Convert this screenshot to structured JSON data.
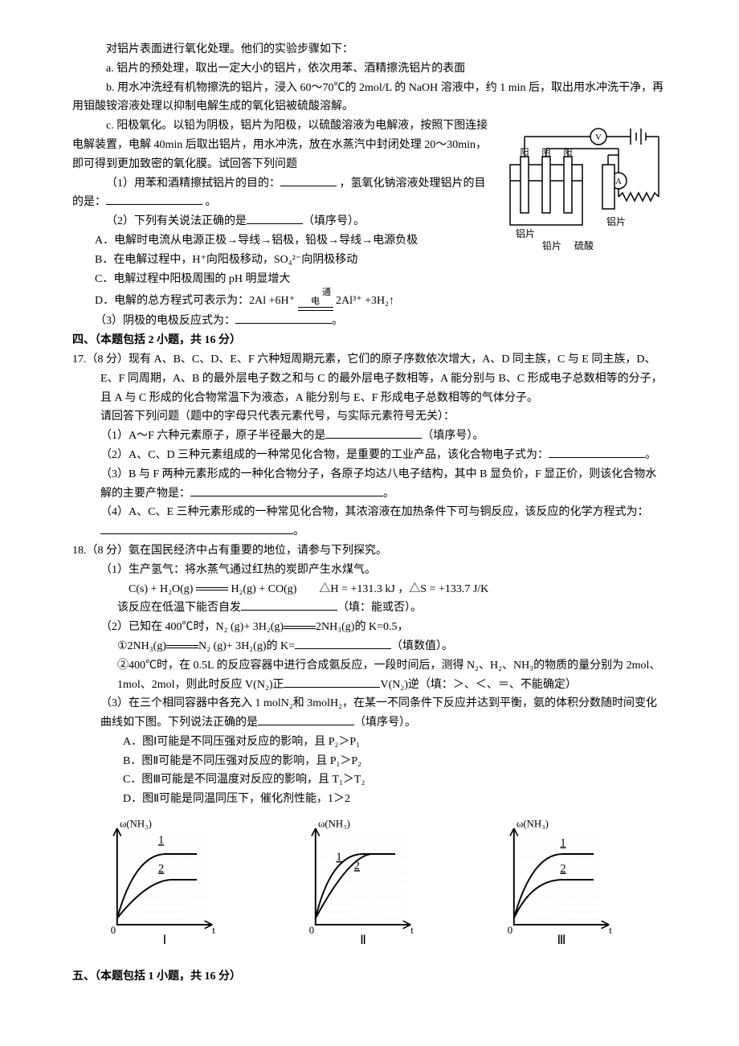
{
  "intro": {
    "l1": "对铝片表面进行氧化处理。他们的实验步骤如下：",
    "la": "a. 铝片的预处理，取出一定大小的铝片，依次用苯、酒精擦洗铝片的表面",
    "lb": "b. 用水冲洗经有机物擦洗的铝片，浸入 60～70℃的 2mol/L 的 NaOH 溶液中，约 1 min 后，取出用水冲洗干净，再用钼酸铵溶液处理以抑制电解生成的氧化铝被硫酸溶解。",
    "lc1": "c. 阳极氧化。以铅为阴极，铝片为阳极，以硫酸溶液为电解液，按照下图连接电解装置，电解 40min 后取出铝片，用水冲洗，放在水蒸汽中封闭处理 20～30min，即可得到更加致密的氧化膜。试回答下列问题",
    "q1a": "（1）用苯和酒精擦拭铝片的目的：",
    "q1b": "，氢氧化钠溶液处理铝片的目的是：",
    "q1c": "。",
    "q2": "（2）下列有关说法正确的是",
    "q2tail": "（填序号）。",
    "optA": "A．电解时电流从电源正极→导线→铝极，铅极→导线→电源负极",
    "optB": "B．在电解过程中，H⁺向阳极移动，SO₄²⁻向阴极移动",
    "optC": "C．电解过程中阳极周围的 pH 明显增大",
    "optD1": "D．电解的总方程式可表示为：2Al +6H⁺",
    "optD_top": "通电",
    "optD2": " 2Al³⁺ +3H₂↑",
    "q3": "（3）阴极的电极反应式为：",
    "q3tail": "。"
  },
  "diagram1": {
    "labels": {
      "alplate_l": "铝片",
      "lead": "铅片",
      "acid": "硫酸",
      "alplate_r": "铝片",
      "yang": "阳",
      "yin": "阴"
    }
  },
  "sec4": {
    "title": "四、（本题包括 2 小题，共 16 分）",
    "q17": {
      "stem": "17.（8 分）现有 A、B、C、D、E、F 六种短周期元素，它们的原子序数依次增大，A、D 同主族，C 与 E 同主族，D、E、F 同周期，A、B 的最外层电子数之和与 C 的最外层电子数相等，A 能分别与 B、C 形成电子总数相等的分子，且 A 与 C 形成的化合物常温下为液态，A 能分别与 E、F 形成电子总数相等的气体分子。",
      "note": "请回答下列问题（题中的字母只代表元素代号，与实际元素符号无关）：",
      "p1a": "（1）A～F 六种元素原子，原子半径最大的是",
      "p1b": "（填序号）。",
      "p2a": "（2）A、C、D 三种元素组成的一种常见化合物，是重要的工业产品，该化合物电子式为：",
      "p2b": "。",
      "p3a": "（3）B 与 F 两种元素形成的一种化合物分子，各原子均达八电子结构，其中 B 显负价，F 显正价，则该化合物水解的主要产物是：",
      "p3b": "。",
      "p4a": "（4）A、C、E 三种元素形成的一种常见化合物，其浓溶液在加热条件下可与铜反应，该反应的化学方程式为：",
      "p4b": "。"
    },
    "q18": {
      "stem": "18.（8 分）氨在国民经济中占有重要的地位，请参与下列探究。",
      "p1a": "（1）生产氢气：将水蒸气通过红热的炭即产生水煤气。",
      "eq1": "C(s) + H₂O(g)",
      "eq1b": "H₂(g) + CO(g)　　△H = +131.3 kJ ，△S = +133.7 J/K",
      "p1b": "该反应在低温下能否自发",
      "p1c": "（填：能或否）。",
      "p2a": "（2）已知在 400℃时，N₂ (g)+ 3H₂(g)",
      "p2a2": "2NH₃(g)的 K=0.5，",
      "p2b1": "①2NH₃(g)",
      "p2b2": "N₂ (g)+ 3H₂(g)的 K=",
      "p2b3": "（填数值）。",
      "p2c1": "②400℃时，在 0.5L 的反应容器中进行合成氨反应，一段时间后，测得 N₂、H₂、NH₃的物质的量分别为 2mol、1mol、2mol，则此时反应 V(N₂)正",
      "p2c2": "V(N₂)逆（填：＞、＜、＝、不能确定）",
      "p3a": "（3）在三个相同容器中各充入 1 molN₂和 3molH₂，在某一不同条件下反应并达到平衡，氨的体积分数随时间变化曲线如下图。下列说法正确的是",
      "p3b": "（填序号）。",
      "oA": "A．图Ⅰ可能是不同压强对反应的影响，且 P₂＞P₁",
      "oB": "B．图Ⅱ可能是不同压强对反应的影响，且 P₁＞P₂",
      "oC": "C．图Ⅲ可能是不同温度对反应的影响，且 T₁＞T₂",
      "oD": "D．图Ⅱ可能是同温同压下，催化剂性能，1＞2"
    }
  },
  "charts": {
    "ylabel": "ω(NH₃)",
    "xlabel": "t",
    "labels": [
      "Ⅰ",
      "Ⅱ",
      "Ⅲ"
    ],
    "curve_color": "#000000",
    "axis_color": "#000000",
    "grid_color": "#e8e8e8",
    "chart1": {
      "curve1": [
        [
          8,
          80
        ],
        [
          22,
          30
        ],
        [
          70,
          30
        ]
      ],
      "curve2": [
        [
          8,
          80
        ],
        [
          32,
          50
        ],
        [
          70,
          50
        ]
      ],
      "n1_pos": [
        40,
        22
      ],
      "n2_pos": [
        40,
        44
      ],
      "n1": "1",
      "n2": "2"
    },
    "chart2": {
      "curve1": [
        [
          8,
          80
        ],
        [
          20,
          30
        ],
        [
          70,
          30
        ]
      ],
      "curve2": [
        [
          8,
          80
        ],
        [
          35,
          30
        ],
        [
          70,
          30
        ]
      ],
      "n1_pos": [
        24,
        35
      ],
      "n2_pos": [
        38,
        42
      ],
      "n1": "1",
      "n2": "2"
    },
    "chart3": {
      "curve1": [
        [
          8,
          80
        ],
        [
          22,
          30
        ],
        [
          70,
          30
        ]
      ],
      "curve2": [
        [
          8,
          80
        ],
        [
          22,
          50
        ],
        [
          70,
          50
        ]
      ],
      "n1_pos": [
        44,
        24
      ],
      "n2_pos": [
        44,
        44
      ],
      "n1": "1",
      "n2": "2"
    }
  },
  "sec5": {
    "title": "五、（本题包括 1 小题，共 16 分）"
  }
}
